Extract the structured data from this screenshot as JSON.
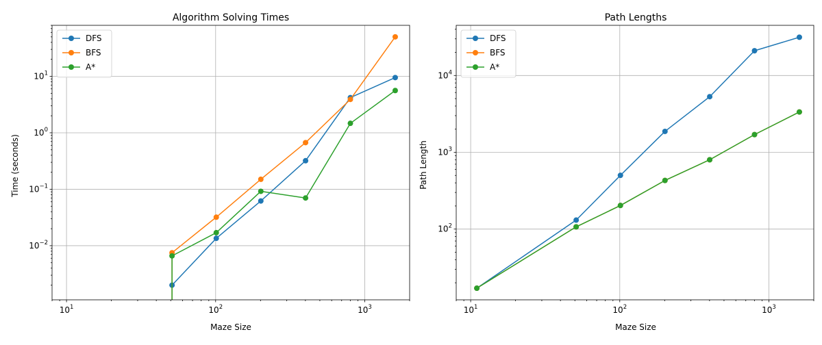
{
  "chart_data": [
    {
      "type": "line",
      "title": "Algorithm Solving Times",
      "xlabel": "Maze Size",
      "ylabel": "Time (seconds)",
      "xscale": "log",
      "yscale": "log",
      "xlim": [
        8,
        2000
      ],
      "ylim": [
        0.0011,
        80
      ],
      "grid": true,
      "legend_position": "top-left",
      "x_ticks": [
        {
          "v": 10,
          "base": "10",
          "exp": "1"
        },
        {
          "v": 100,
          "base": "10",
          "exp": "2"
        },
        {
          "v": 1000,
          "base": "10",
          "exp": "3"
        }
      ],
      "y_ticks": [
        {
          "v": 0.01,
          "base": "10",
          "exp": "−2"
        },
        {
          "v": 0.1,
          "base": "10",
          "exp": "−1"
        },
        {
          "v": 1,
          "base": "10",
          "exp": "0"
        },
        {
          "v": 10,
          "base": "10",
          "exp": "1"
        }
      ],
      "series": [
        {
          "name": "DFS",
          "color": "#1f77b4",
          "x": [
            51,
            101,
            201,
            401,
            801,
            1601
          ],
          "y": [
            0.002,
            0.0135,
            0.062,
            0.32,
            4.2,
            9.5
          ]
        },
        {
          "name": "BFS",
          "color": "#ff7f0e",
          "x": [
            51,
            51,
            101,
            201,
            401,
            801,
            1601
          ],
          "y": [
            0.0005,
            0.0075,
            0.032,
            0.15,
            0.67,
            3.9,
            50
          ]
        },
        {
          "name": "A*",
          "color": "#2ca02c",
          "x": [
            51,
            51,
            101,
            201,
            401,
            801,
            1601
          ],
          "y": [
            0.0005,
            0.0066,
            0.017,
            0.092,
            0.07,
            1.47,
            5.6
          ]
        }
      ]
    },
    {
      "type": "line",
      "title": "Path Lengths",
      "xlabel": "Maze Size",
      "ylabel": "Path Length",
      "xscale": "log",
      "yscale": "log",
      "xlim": [
        8,
        2000
      ],
      "ylim": [
        12,
        45000
      ],
      "grid": true,
      "legend_position": "top-left",
      "x_ticks": [
        {
          "v": 10,
          "base": "10",
          "exp": "1"
        },
        {
          "v": 100,
          "base": "10",
          "exp": "2"
        },
        {
          "v": 1000,
          "base": "10",
          "exp": "3"
        }
      ],
      "y_ticks": [
        {
          "v": 100,
          "base": "10",
          "exp": "2"
        },
        {
          "v": 1000,
          "base": "10",
          "exp": "3"
        },
        {
          "v": 10000,
          "base": "10",
          "exp": "4"
        }
      ],
      "series": [
        {
          "name": "DFS",
          "color": "#1f77b4",
          "x": [
            11,
            51,
            101,
            201,
            401,
            801,
            1601
          ],
          "y": [
            17,
            131,
            501,
            1871,
            5300,
            21000,
            31500
          ]
        },
        {
          "name": "BFS",
          "color": "#ff7f0e",
          "x": [
            11,
            51,
            101,
            201,
            401,
            801,
            1601
          ],
          "y": [
            17,
            107,
            203,
            430,
            800,
            1700,
            3350
          ]
        },
        {
          "name": "A*",
          "color": "#2ca02c",
          "x": [
            11,
            51,
            101,
            201,
            401,
            801,
            1601
          ],
          "y": [
            17,
            107,
            203,
            430,
            800,
            1700,
            3350
          ]
        }
      ]
    }
  ]
}
